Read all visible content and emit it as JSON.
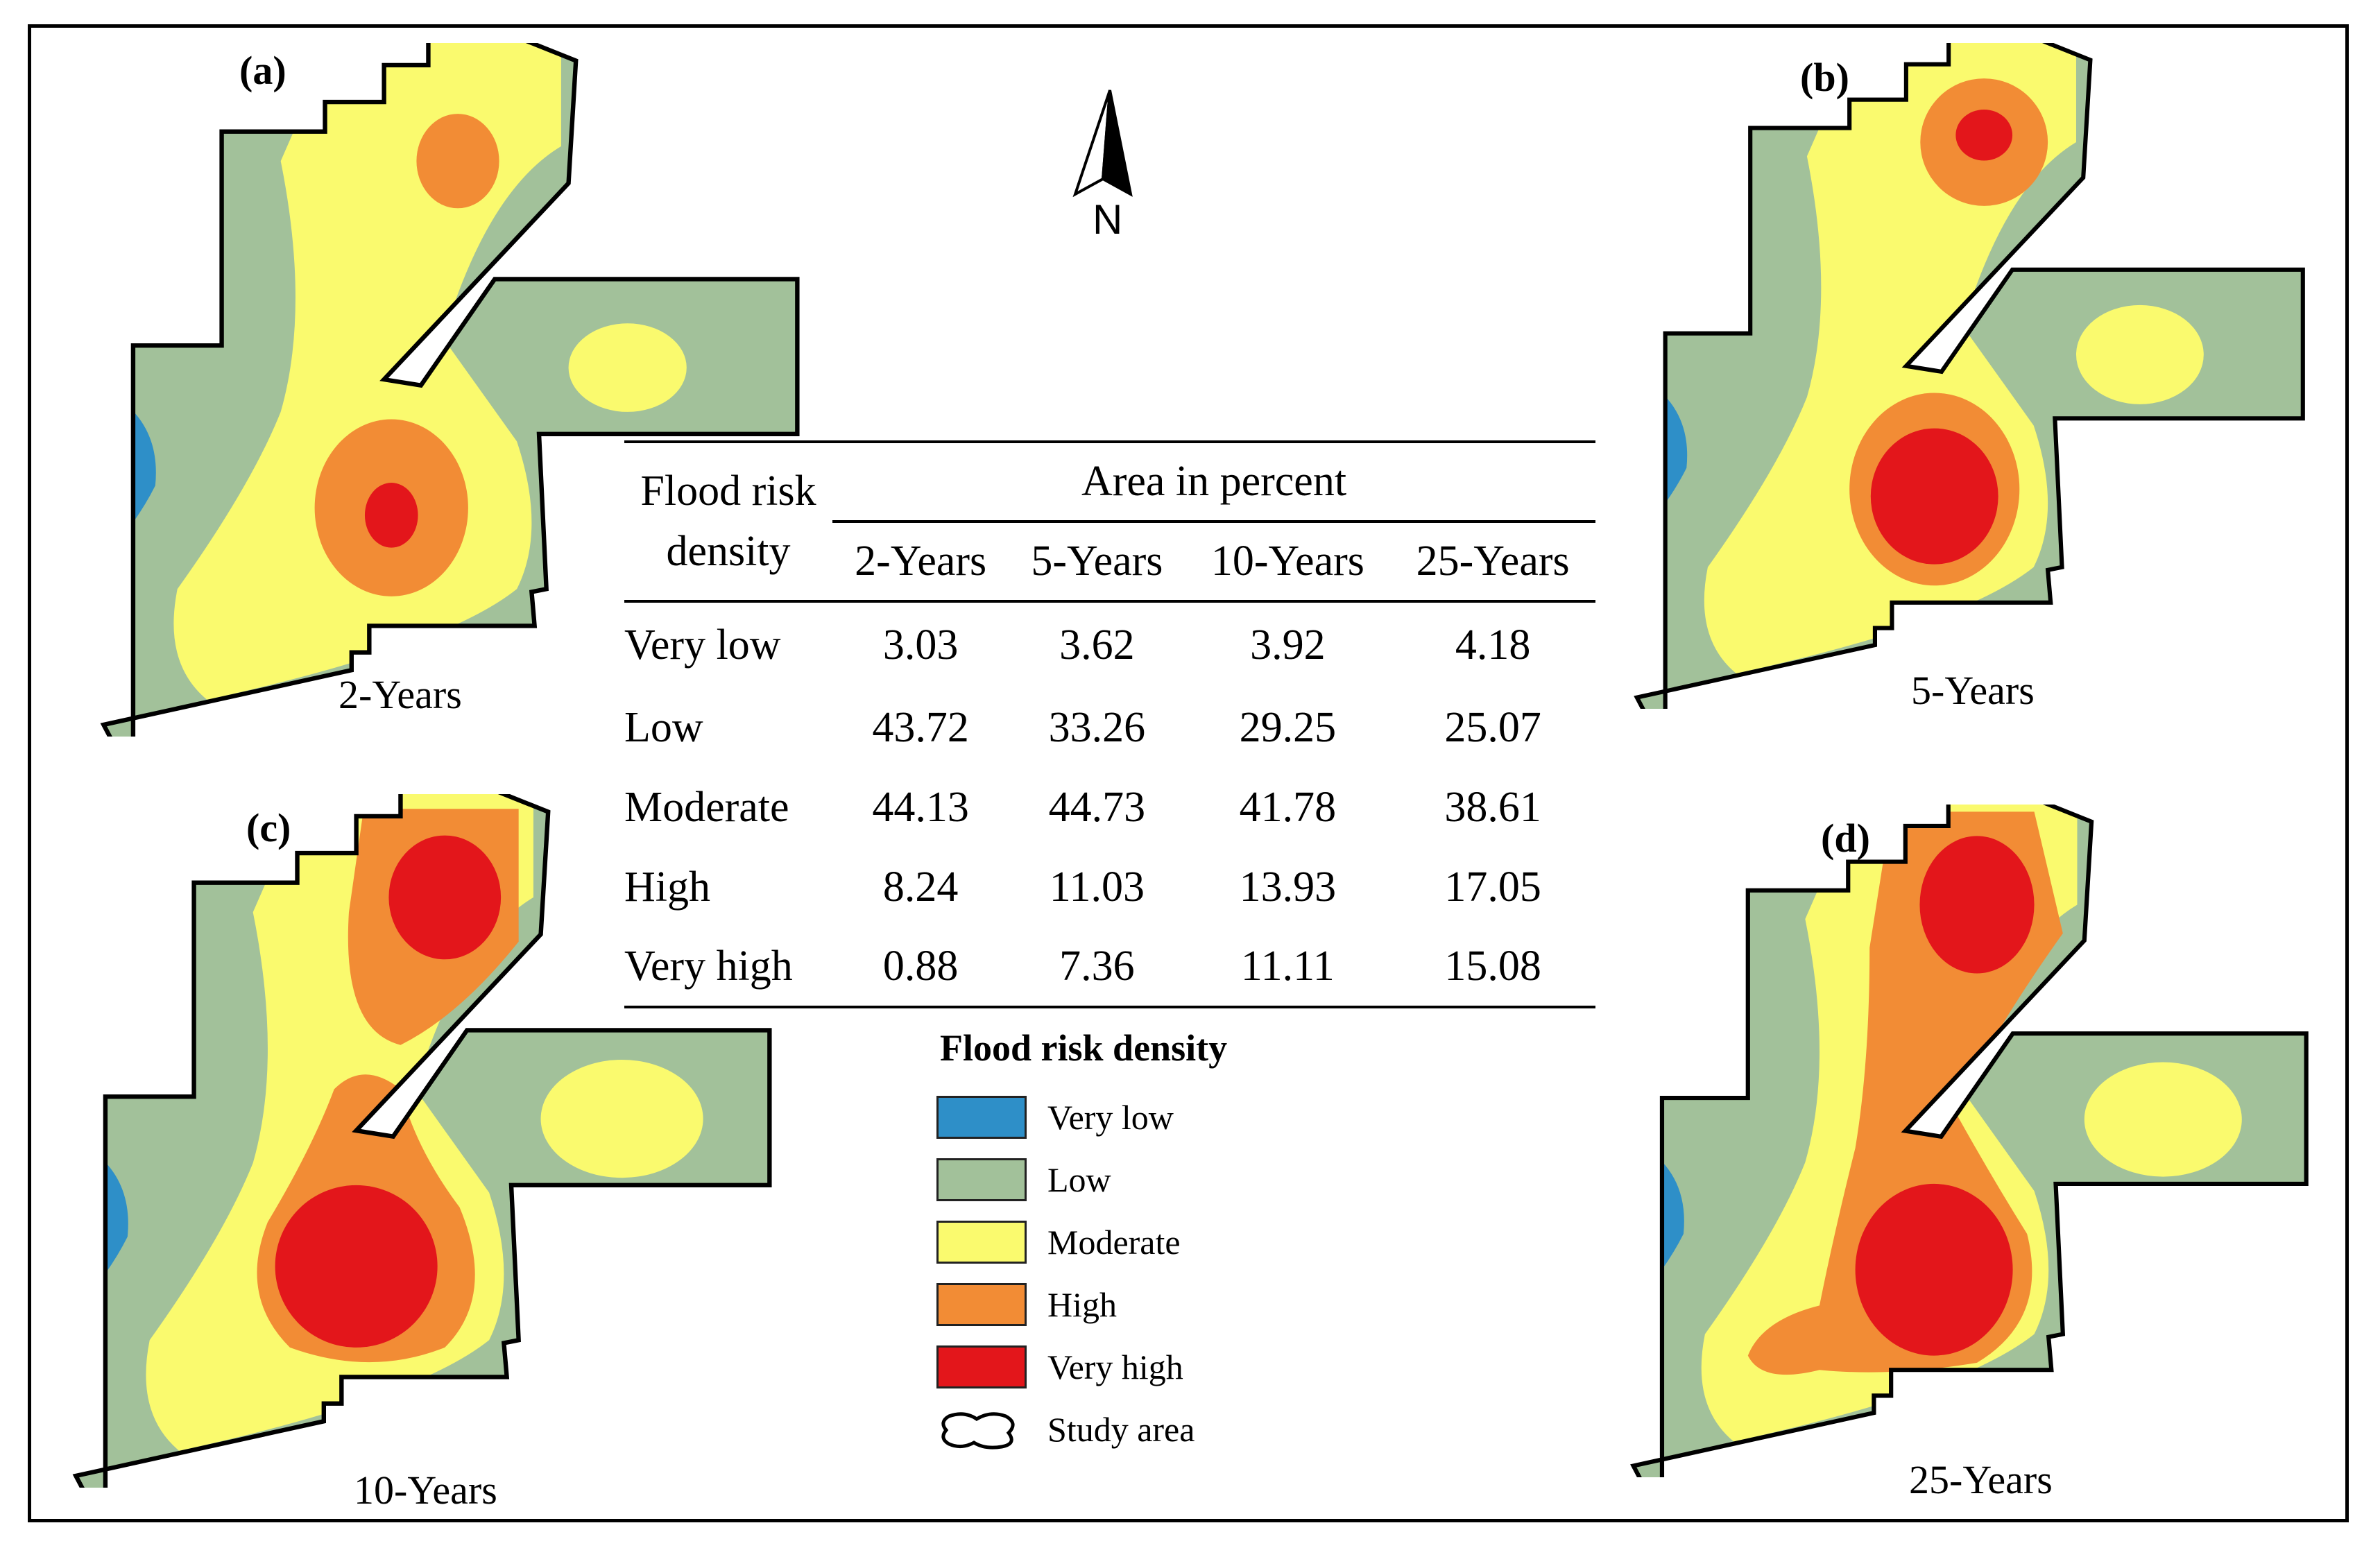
{
  "north_arrow": {
    "label": "N"
  },
  "panels": [
    {
      "letter": "(a)",
      "caption": "2-Years"
    },
    {
      "letter": "(b)",
      "caption": "5-Years"
    },
    {
      "letter": "(c)",
      "caption": "10-Years"
    },
    {
      "letter": "(d)",
      "caption": "25-Years"
    }
  ],
  "table": {
    "row_header": [
      "Flood risk",
      "density"
    ],
    "group_header": "Area in percent",
    "columns": [
      "2-Years",
      "5-Years",
      "10-Years",
      "25-Years"
    ],
    "rows": [
      {
        "label": "Very low",
        "values": [
          "3.03",
          "3.62",
          "3.92",
          "4.18"
        ]
      },
      {
        "label": "Low",
        "values": [
          "43.72",
          "33.26",
          "29.25",
          "25.07"
        ]
      },
      {
        "label": "Moderate",
        "values": [
          "44.13",
          "44.73",
          "41.78",
          "38.61"
        ]
      },
      {
        "label": "High",
        "values": [
          "8.24",
          "11.03",
          "13.93",
          "17.05"
        ]
      },
      {
        "label": "Very high",
        "values": [
          "0.88",
          "7.36",
          "11.11",
          "15.08"
        ]
      }
    ]
  },
  "legend": {
    "title": "Flood risk density",
    "items": [
      {
        "label": "Very low",
        "color": "#2e8fc8"
      },
      {
        "label": "Low",
        "color": "#a2c19a"
      },
      {
        "label": "Moderate",
        "color": "#fafa6e"
      },
      {
        "label": "High",
        "color": "#f28c35"
      },
      {
        "label": "Very high",
        "color": "#e3161b"
      },
      {
        "label": "Study area",
        "color": "#ffffff"
      }
    ]
  }
}
